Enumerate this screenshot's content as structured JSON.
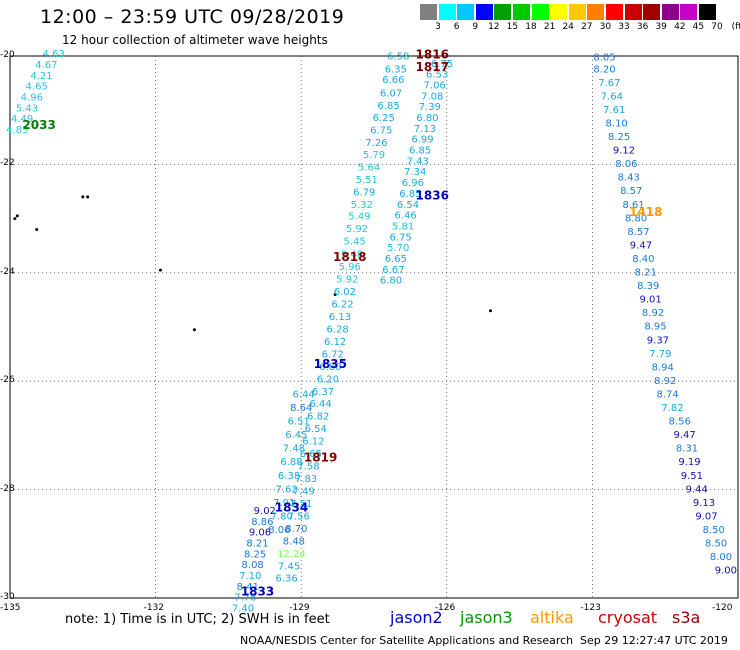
{
  "header": {
    "title": "12:00 – 23:59 UTC 09/28/2019",
    "subtitle": "12 hour collection of altimeter wave heights"
  },
  "legend": {
    "unit": "(ft)",
    "labels": [
      "3",
      "6",
      "9",
      "12",
      "15",
      "18",
      "21",
      "24",
      "27",
      "30",
      "33",
      "36",
      "39",
      "42",
      "45",
      "70"
    ],
    "colors": [
      "#808080",
      "#00ffff",
      "#00c8ff",
      "#0000ff",
      "#00a000",
      "#00c800",
      "#00ff00",
      "#ffff00",
      "#ffc800",
      "#ff8000",
      "#ff0000",
      "#c80000",
      "#a00000",
      "#8c008c",
      "#c800c8",
      "#000000"
    ]
  },
  "axes": {
    "x_ticks": [
      "-135",
      "-132",
      "-129",
      "-126",
      "-123",
      "-120"
    ],
    "y_ticks": [
      "-20",
      "-22",
      "-24",
      "-26",
      "-28",
      "-30"
    ]
  },
  "chart_data": {
    "type": "map",
    "xlim": [
      -135,
      -120
    ],
    "ylim": [
      -30,
      -20
    ],
    "grid": true,
    "track_labels": [
      {
        "text": "2033",
        "lon": -134.4,
        "lat": -21.35,
        "color": "#008000"
      },
      {
        "text": "1816",
        "lon": -126.3,
        "lat": -20.05,
        "color": "#800000"
      },
      {
        "text": "1817",
        "lon": -126.3,
        "lat": -20.28,
        "color": "#800000"
      },
      {
        "text": "1836",
        "lon": -126.3,
        "lat": -22.65,
        "color": "#0000c0"
      },
      {
        "text": "1818",
        "lon": -128.0,
        "lat": -23.78,
        "color": "#800000"
      },
      {
        "text": "1835",
        "lon": -128.4,
        "lat": -25.76,
        "color": "#0000c0"
      },
      {
        "text": "1819",
        "lon": -128.6,
        "lat": -27.48,
        "color": "#800000"
      },
      {
        "text": "1834",
        "lon": -129.2,
        "lat": -28.4,
        "color": "#0000c0"
      },
      {
        "text": "1833",
        "lon": -129.9,
        "lat": -29.95,
        "color": "#0000c0"
      },
      {
        "text": "1418",
        "lon": -121.9,
        "lat": -22.95,
        "color": "#ff9900"
      }
    ],
    "tracks": [
      {
        "name": "west",
        "points": [
          {
            "lon": -134.1,
            "lat": -20.02,
            "swh": 4.63
          },
          {
            "lon": -134.25,
            "lat": -20.22,
            "swh": 4.67
          },
          {
            "lon": -134.35,
            "lat": -20.42,
            "swh": 4.21
          },
          {
            "lon": -134.45,
            "lat": -20.62,
            "swh": 4.65
          },
          {
            "lon": -134.55,
            "lat": -20.82,
            "swh": 4.96
          },
          {
            "lon": -134.65,
            "lat": -21.02,
            "swh": 5.43
          },
          {
            "lon": -134.75,
            "lat": -21.22,
            "swh": 4.49
          },
          {
            "lon": -134.85,
            "lat": -21.42,
            "swh": 4.83
          }
        ]
      },
      {
        "name": "central-west",
        "points": [
          {
            "lon": -127.0,
            "lat": -20.06,
            "swh": 6.58
          },
          {
            "lon": -127.05,
            "lat": -20.3,
            "swh": 6.35
          },
          {
            "lon": -127.1,
            "lat": -20.5,
            "swh": 6.66
          },
          {
            "lon": -127.15,
            "lat": -20.75,
            "swh": 6.07
          },
          {
            "lon": -127.2,
            "lat": -20.98,
            "swh": 6.85
          },
          {
            "lon": -127.3,
            "lat": -21.2,
            "swh": 6.25
          },
          {
            "lon": -127.35,
            "lat": -21.43,
            "swh": 6.75
          },
          {
            "lon": -127.45,
            "lat": -21.66,
            "swh": 7.26
          },
          {
            "lon": -127.5,
            "lat": -21.88,
            "swh": 5.79
          },
          {
            "lon": -127.6,
            "lat": -22.11,
            "swh": 5.64
          },
          {
            "lon": -127.65,
            "lat": -22.34,
            "swh": 5.51
          },
          {
            "lon": -127.7,
            "lat": -22.57,
            "swh": 6.79
          },
          {
            "lon": -127.75,
            "lat": -22.8,
            "swh": 5.32
          },
          {
            "lon": -127.8,
            "lat": -23.02,
            "swh": 5.49
          },
          {
            "lon": -127.85,
            "lat": -23.25,
            "swh": 5.92
          },
          {
            "lon": -127.9,
            "lat": -23.48,
            "swh": 5.45
          },
          {
            "lon": -127.95,
            "lat": -23.72,
            "swh": 5.48
          },
          {
            "lon": -128.0,
            "lat": -23.95,
            "swh": 5.96
          },
          {
            "lon": -128.05,
            "lat": -24.18,
            "swh": 5.92
          },
          {
            "lon": -128.1,
            "lat": -24.41,
            "swh": 6.02
          },
          {
            "lon": -128.15,
            "lat": -24.64,
            "swh": 6.22
          },
          {
            "lon": -128.2,
            "lat": -24.87,
            "swh": 6.13
          },
          {
            "lon": -128.25,
            "lat": -25.1,
            "swh": 6.28
          },
          {
            "lon": -128.3,
            "lat": -25.33,
            "swh": 6.12
          },
          {
            "lon": -128.35,
            "lat": -25.56,
            "swh": 6.72
          },
          {
            "lon": -128.4,
            "lat": -25.79,
            "swh": 6.8
          },
          {
            "lon": -128.45,
            "lat": -26.02,
            "swh": 6.2
          },
          {
            "lon": -128.55,
            "lat": -26.25,
            "swh": 6.37
          },
          {
            "lon": -128.6,
            "lat": -26.48,
            "swh": 6.44
          },
          {
            "lon": -128.65,
            "lat": -26.71,
            "swh": 6.82
          },
          {
            "lon": -128.7,
            "lat": -26.94,
            "swh": 6.54
          },
          {
            "lon": -128.75,
            "lat": -27.17,
            "swh": 6.12
          },
          {
            "lon": -128.8,
            "lat": -27.4,
            "swh": 6.65
          },
          {
            "lon": -128.85,
            "lat": -27.63,
            "swh": 7.58
          },
          {
            "lon": -128.9,
            "lat": -27.86,
            "swh": 7.83
          },
          {
            "lon": -128.95,
            "lat": -28.09,
            "swh": 7.49
          },
          {
            "lon": -129.0,
            "lat": -28.32,
            "swh": 7.51
          },
          {
            "lon": -129.05,
            "lat": -28.55,
            "swh": 7.56
          },
          {
            "lon": -129.1,
            "lat": -28.78,
            "swh": 8.7
          },
          {
            "lon": -129.15,
            "lat": -29.01,
            "swh": 8.48
          },
          {
            "lon": -129.2,
            "lat": -29.24,
            "swh": 12.24
          },
          {
            "lon": -129.25,
            "lat": -29.47,
            "swh": 7.45
          },
          {
            "lon": -129.3,
            "lat": -29.7,
            "swh": 6.36
          }
        ]
      },
      {
        "name": "central-east",
        "points": [
          {
            "lon": -126.1,
            "lat": -20.2,
            "swh": 6.75
          },
          {
            "lon": -126.2,
            "lat": -20.4,
            "swh": 6.53
          },
          {
            "lon": -126.25,
            "lat": -20.6,
            "swh": 7.06
          },
          {
            "lon": -126.3,
            "lat": -20.8,
            "swh": 7.08
          },
          {
            "lon": -126.35,
            "lat": -21.0,
            "swh": 7.39
          },
          {
            "lon": -126.4,
            "lat": -21.2,
            "swh": 6.8
          },
          {
            "lon": -126.45,
            "lat": -21.4,
            "swh": 7.13
          },
          {
            "lon": -126.5,
            "lat": -21.6,
            "swh": 6.99
          },
          {
            "lon": -126.55,
            "lat": -21.8,
            "swh": 6.85
          },
          {
            "lon": -126.6,
            "lat": -22.0,
            "swh": 7.43
          },
          {
            "lon": -126.65,
            "lat": -22.2,
            "swh": 7.34
          },
          {
            "lon": -126.7,
            "lat": -22.4,
            "swh": 6.96
          },
          {
            "lon": -126.75,
            "lat": -22.6,
            "swh": 6.85
          },
          {
            "lon": -126.8,
            "lat": -22.8,
            "swh": 6.54
          },
          {
            "lon": -126.85,
            "lat": -23.0,
            "swh": 6.46
          },
          {
            "lon": -126.9,
            "lat": -23.2,
            "swh": 5.81
          },
          {
            "lon": -126.95,
            "lat": -23.4,
            "swh": 6.75
          },
          {
            "lon": -127.0,
            "lat": -23.6,
            "swh": 5.7
          },
          {
            "lon": -127.05,
            "lat": -23.8,
            "swh": 6.65
          },
          {
            "lon": -127.1,
            "lat": -24.0,
            "swh": 6.67
          },
          {
            "lon": -127.15,
            "lat": -24.2,
            "swh": 6.8
          }
        ]
      },
      {
        "name": "southwest",
        "points": [
          {
            "lon": -128.95,
            "lat": -26.3,
            "swh": 6.44
          },
          {
            "lon": -129.0,
            "lat": -26.55,
            "swh": 8.64
          },
          {
            "lon": -129.05,
            "lat": -26.8,
            "swh": 6.51
          },
          {
            "lon": -129.1,
            "lat": -27.05,
            "swh": 6.45
          },
          {
            "lon": -129.15,
            "lat": -27.3,
            "swh": 7.48
          },
          {
            "lon": -129.2,
            "lat": -27.55,
            "swh": 6.88
          },
          {
            "lon": -129.25,
            "lat": -27.8,
            "swh": 6.38
          },
          {
            "lon": -129.3,
            "lat": -28.05,
            "swh": 7.62
          },
          {
            "lon": -129.35,
            "lat": -28.3,
            "swh": 7.91
          },
          {
            "lon": -129.4,
            "lat": -28.55,
            "swh": 7.8
          },
          {
            "lon": -129.45,
            "lat": -28.8,
            "swh": 8.06
          }
        ]
      },
      {
        "name": "southwest-deep",
        "points": [
          {
            "lon": -129.75,
            "lat": -28.45,
            "swh": 9.02
          },
          {
            "lon": -129.8,
            "lat": -28.65,
            "swh": 8.86
          },
          {
            "lon": -129.85,
            "lat": -28.85,
            "swh": 9.06
          },
          {
            "lon": -129.9,
            "lat": -29.05,
            "swh": 8.21
          },
          {
            "lon": -129.95,
            "lat": -29.25,
            "swh": 8.25
          },
          {
            "lon": -130.0,
            "lat": -29.45,
            "swh": 8.08
          },
          {
            "lon": -130.05,
            "lat": -29.65,
            "swh": 7.1
          },
          {
            "lon": -130.1,
            "lat": -29.85,
            "swh": 8.41
          },
          {
            "lon": -130.15,
            "lat": -30.05,
            "swh": 7.78
          },
          {
            "lon": -130.2,
            "lat": -30.25,
            "swh": 7.4
          }
        ]
      },
      {
        "name": "east",
        "points": [
          {
            "lon": -122.75,
            "lat": -20.08,
            "swh": 8.05
          },
          {
            "lon": -122.75,
            "lat": -20.3,
            "swh": 8.2
          },
          {
            "lon": -122.65,
            "lat": -20.55,
            "swh": 7.67
          },
          {
            "lon": -122.6,
            "lat": -20.8,
            "swh": 7.64
          },
          {
            "lon": -122.55,
            "lat": -21.05,
            "swh": 7.61
          },
          {
            "lon": -122.5,
            "lat": -21.3,
            "swh": 8.1
          },
          {
            "lon": -122.45,
            "lat": -21.55,
            "swh": 8.25
          },
          {
            "lon": -122.35,
            "lat": -21.8,
            "swh": 9.12
          },
          {
            "lon": -122.3,
            "lat": -22.05,
            "swh": 8.06
          },
          {
            "lon": -122.25,
            "lat": -22.3,
            "swh": 8.43
          },
          {
            "lon": -122.2,
            "lat": -22.55,
            "swh": 8.57
          },
          {
            "lon": -122.15,
            "lat": -22.8,
            "swh": 8.61
          },
          {
            "lon": -122.1,
            "lat": -23.05,
            "swh": 8.8
          },
          {
            "lon": -122.05,
            "lat": -23.3,
            "swh": 8.57
          },
          {
            "lon": -122.0,
            "lat": -23.55,
            "swh": 9.47
          },
          {
            "lon": -121.95,
            "lat": -23.8,
            "swh": 8.4
          },
          {
            "lon": -121.9,
            "lat": -24.05,
            "swh": 8.21
          },
          {
            "lon": -121.85,
            "lat": -24.3,
            "swh": 8.39
          },
          {
            "lon": -121.8,
            "lat": -24.55,
            "swh": 9.01
          },
          {
            "lon": -121.75,
            "lat": -24.8,
            "swh": 8.92
          },
          {
            "lon": -121.7,
            "lat": -25.05,
            "swh": 8.95
          },
          {
            "lon": -121.65,
            "lat": -25.3,
            "swh": 9.37
          },
          {
            "lon": -121.6,
            "lat": -25.55,
            "swh": 7.79
          },
          {
            "lon": -121.55,
            "lat": -25.8,
            "swh": 8.94
          },
          {
            "lon": -121.5,
            "lat": -26.05,
            "swh": 8.92
          },
          {
            "lon": -121.45,
            "lat": -26.3,
            "swh": 8.74
          },
          {
            "lon": -121.35,
            "lat": -26.55,
            "swh": 7.82
          },
          {
            "lon": -121.2,
            "lat": -26.8,
            "swh": 8.56
          },
          {
            "lon": -121.1,
            "lat": -27.05,
            "swh": 9.47
          },
          {
            "lon": -121.05,
            "lat": -27.3,
            "swh": 8.31
          },
          {
            "lon": -121.0,
            "lat": -27.55,
            "swh": 9.19
          },
          {
            "lon": -120.95,
            "lat": -27.8,
            "swh": 9.51
          },
          {
            "lon": -120.85,
            "lat": -28.05,
            "swh": 9.44
          },
          {
            "lon": -120.7,
            "lat": -28.3,
            "swh": 9.13
          },
          {
            "lon": -120.65,
            "lat": -28.55,
            "swh": 9.07
          },
          {
            "lon": -120.5,
            "lat": -28.8,
            "swh": 8.5
          },
          {
            "lon": -120.45,
            "lat": -29.05,
            "swh": 8.5
          },
          {
            "lon": -120.35,
            "lat": -29.3,
            "swh": 8
          },
          {
            "lon": -120.25,
            "lat": -29.55,
            "swh": 9
          }
        ]
      }
    ],
    "islands": [
      {
        "lon": -133.4,
        "lat": -22.6
      },
      {
        "lon": -133.5,
        "lat": -22.6
      },
      {
        "lon": -134.85,
        "lat": -22.95
      },
      {
        "lon": -134.9,
        "lat": -23.0
      },
      {
        "lon": -134.45,
        "lat": -23.2
      },
      {
        "lon": -131.9,
        "lat": -23.95
      },
      {
        "lon": -128.3,
        "lat": -24.4
      },
      {
        "lon": -131.2,
        "lat": -25.05
      },
      {
        "lon": -125.1,
        "lat": -24.7
      }
    ]
  },
  "footer": {
    "note": "note:  1) Time is in UTC;  2) SWH is in feet",
    "satellites": [
      {
        "name": "jason2",
        "color": "#0000cc"
      },
      {
        "name": "jason3",
        "color": "#009900"
      },
      {
        "name": "altika",
        "color": "#ff9900"
      },
      {
        "name": "cryosat",
        "color": "#cc0000"
      },
      {
        "name": "s3a",
        "color": "#990000"
      }
    ],
    "credit": "NOAA/NESDIS Center for Satellite Applications and Research",
    "timestamp": "Sep 29 12:27:47 UTC 2019"
  }
}
